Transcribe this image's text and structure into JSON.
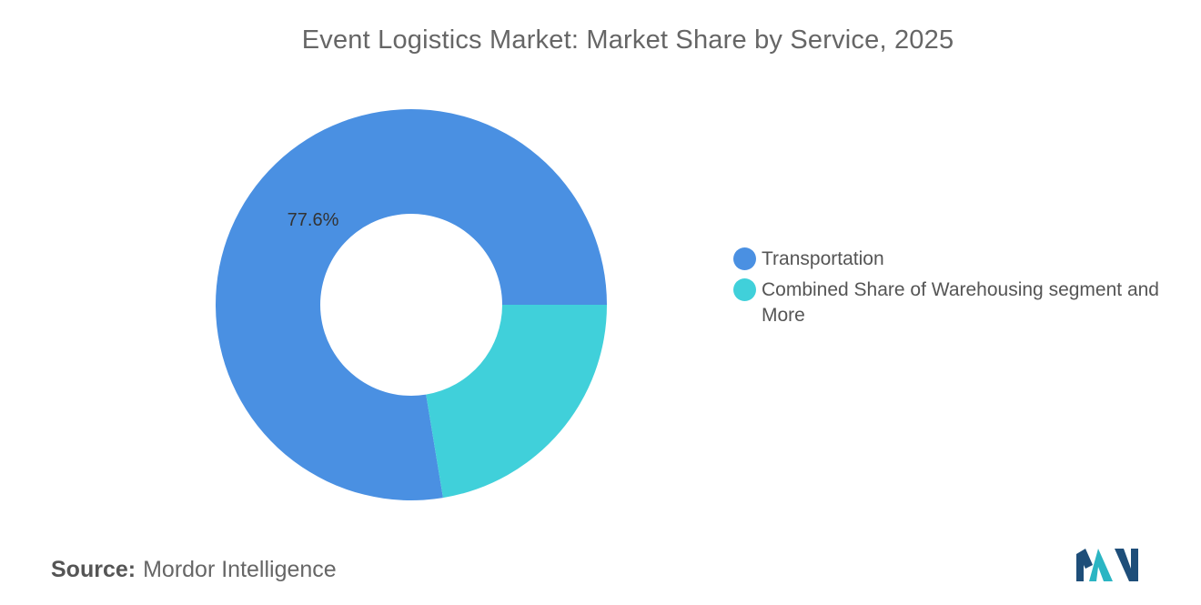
{
  "chart_data": {
    "type": "pie",
    "variant": "donut",
    "title": "Event Logistics Market: Market Share by Service, 2025",
    "slices": [
      {
        "name": "Transportation",
        "value": 77.6,
        "label": "77.6%",
        "color": "#4a90e2"
      },
      {
        "name": "Combined Share of Warehousing segment and More",
        "value": 22.4,
        "label": "",
        "color": "#40d0da"
      }
    ],
    "legend_position": "right"
  },
  "source": {
    "key": "Source:",
    "value": "Mordor Intelligence"
  },
  "logo": {
    "icon": "mordor-intelligence-logo",
    "colors": [
      "#1e4e79",
      "#2bb5c3"
    ]
  }
}
